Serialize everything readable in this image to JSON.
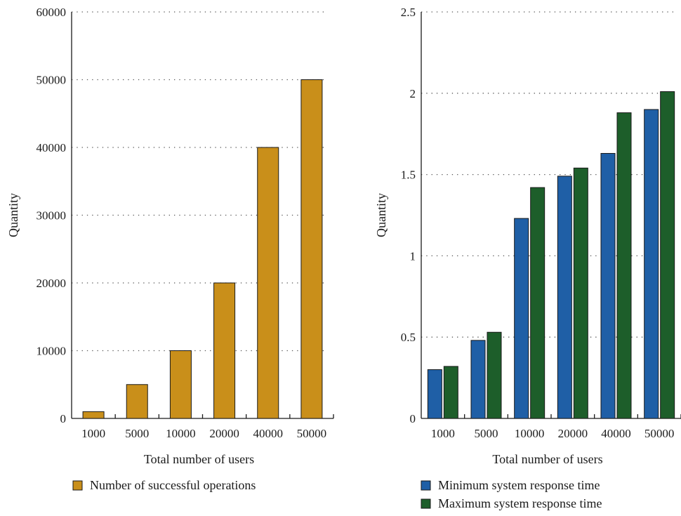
{
  "chart_data": [
    {
      "type": "bar",
      "categories": [
        "1000",
        "5000",
        "10000",
        "20000",
        "40000",
        "50000"
      ],
      "series": [
        {
          "name": "Number of successful operations",
          "values": [
            1000,
            5000,
            10000,
            20000,
            40000,
            50000
          ],
          "color": "#c98f1a"
        }
      ],
      "xlabel": "Total number of users",
      "ylabel": "Quantity",
      "ylim": [
        0,
        60000
      ],
      "yticks": [
        "0",
        "10000",
        "20000",
        "30000",
        "40000",
        "50000",
        "60000"
      ],
      "grid": true,
      "legend_position": "bottom-left"
    },
    {
      "type": "bar",
      "categories": [
        "1000",
        "5000",
        "10000",
        "20000",
        "40000",
        "50000"
      ],
      "series": [
        {
          "name": "Minimum system response time",
          "values": [
            0.3,
            0.48,
            1.23,
            1.49,
            1.63,
            1.9
          ],
          "color": "#1f5fa6"
        },
        {
          "name": "Maximum system response time",
          "values": [
            0.32,
            0.53,
            1.42,
            1.54,
            1.88,
            2.01
          ],
          "color": "#1d5e2a"
        }
      ],
      "xlabel": "Total number of users",
      "ylabel": "Quantity",
      "ylim": [
        0,
        2.5
      ],
      "yticks": [
        "0",
        "0.5",
        "1",
        "1.5",
        "2",
        "2.5"
      ],
      "grid": true,
      "legend_position": "bottom-left"
    }
  ]
}
